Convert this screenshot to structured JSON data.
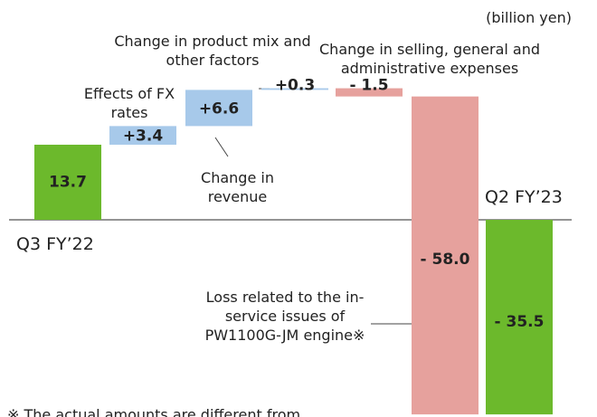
{
  "chart_data": {
    "type": "waterfall",
    "unit_label": "(billion yen)",
    "categories": [
      "Q3 FY’22",
      "Effects of FX rates",
      "Change in revenue",
      "Change in product mix and other factors",
      "Change in selling, general and administrative expenses",
      "Loss related to the in-service issues of PW1100G-JM engine※",
      "Q2 FY’23"
    ],
    "values": [
      13.7,
      3.4,
      6.6,
      0.3,
      -1.5,
      -58.0,
      -35.5
    ],
    "value_labels": [
      "13.7",
      "+3.4",
      "+6.6",
      "+0.3",
      "- 1.5",
      "- 58.0",
      "- 35.5"
    ],
    "total": [
      true,
      false,
      false,
      false,
      false,
      false,
      true
    ],
    "colors": [
      "#6cb92c",
      "#a7c9ea",
      "#a7c9ea",
      "#a7c9ea",
      "#e6a19d",
      "#e6a19d",
      "#6cb92c"
    ],
    "footnote": "※ The actual amounts are different from"
  }
}
